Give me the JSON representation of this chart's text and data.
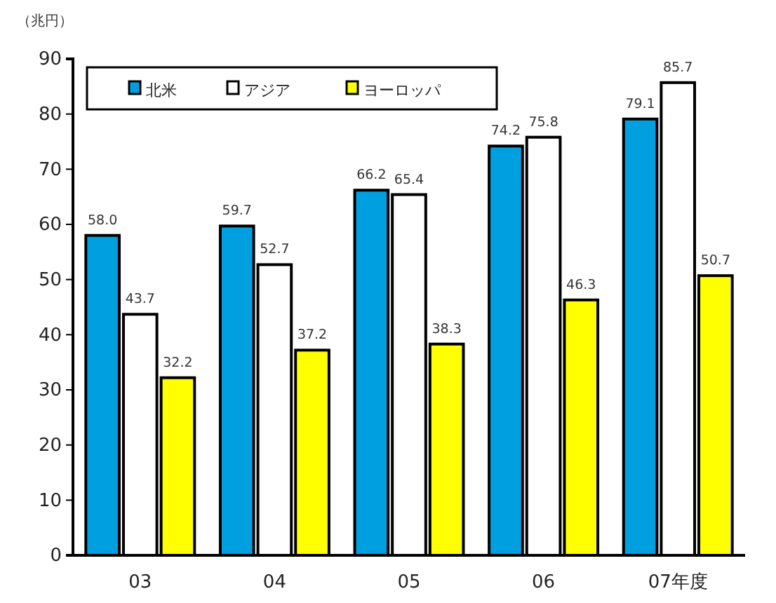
{
  "chart_data": {
    "type": "bar",
    "ylabel": "（兆円）",
    "categories": [
      "03",
      "04",
      "05",
      "06",
      "07年度"
    ],
    "series": [
      {
        "name": "北米",
        "color": "#00a0e0",
        "values": [
          58.0,
          59.7,
          66.2,
          74.2,
          79.1
        ],
        "value_labels": [
          "58.0",
          "59.7",
          "66.2",
          "74.2",
          "79.1"
        ]
      },
      {
        "name": "アジア",
        "color": "#ffffff",
        "values": [
          43.7,
          52.7,
          65.4,
          75.8,
          85.7
        ],
        "value_labels": [
          "43.7",
          "52.7",
          "65.4",
          "75.8",
          "85.7"
        ]
      },
      {
        "name": "ヨーロッパ",
        "color": "#ffff00",
        "values": [
          32.2,
          37.2,
          38.3,
          46.3,
          50.7
        ],
        "value_labels": [
          "32.2",
          "37.2",
          "38.3",
          "46.3",
          "50.7"
        ]
      }
    ],
    "ylim": [
      0,
      90
    ],
    "yticks": [
      0,
      10,
      20,
      30,
      40,
      50,
      60,
      70,
      80,
      90
    ],
    "grid": false,
    "legend": "top left"
  }
}
